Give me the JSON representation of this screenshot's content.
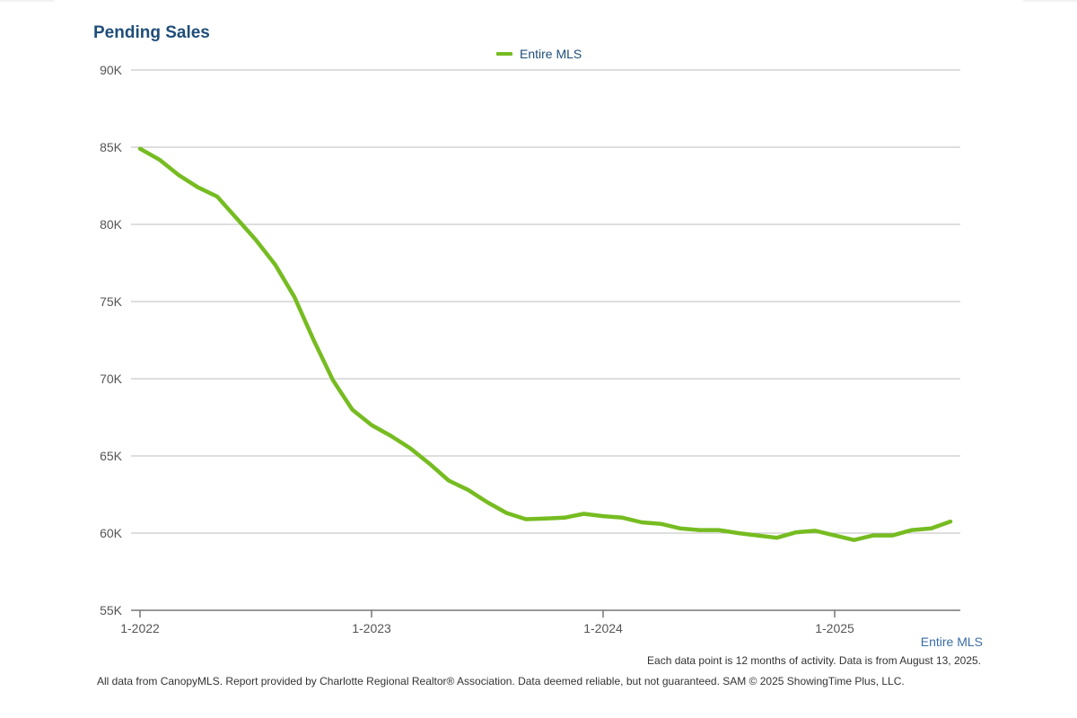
{
  "chart_data": {
    "type": "line",
    "title": "Pending Sales",
    "legend": {
      "entries": [
        "Entire MLS"
      ],
      "placement": "top-center"
    },
    "y_ticks": [
      "55K",
      "60K",
      "65K",
      "70K",
      "75K",
      "80K",
      "85K",
      "90K"
    ],
    "ylim": [
      55000,
      90000
    ],
    "x_ticks": [
      "1-2022",
      "1-2023",
      "1-2024",
      "1-2025"
    ],
    "grid": "horizontal",
    "series": [
      {
        "name": "Entire MLS",
        "color": "#76bc21",
        "x": [
          "2022-01",
          "2022-02",
          "2022-03",
          "2022-04",
          "2022-05",
          "2022-06",
          "2022-07",
          "2022-08",
          "2022-09",
          "2022-10",
          "2022-11",
          "2022-12",
          "2023-01",
          "2023-02",
          "2023-03",
          "2023-04",
          "2023-05",
          "2023-06",
          "2023-07",
          "2023-08",
          "2023-09",
          "2023-10",
          "2023-11",
          "2023-12",
          "2024-01",
          "2024-02",
          "2024-03",
          "2024-04",
          "2024-05",
          "2024-06",
          "2024-07",
          "2024-08",
          "2024-09",
          "2024-10",
          "2024-11",
          "2024-12",
          "2025-01",
          "2025-02",
          "2025-03",
          "2025-04",
          "2025-05",
          "2025-06",
          "2025-07"
        ],
        "values": [
          84900,
          84200,
          83200,
          82400,
          81800,
          80400,
          79000,
          77400,
          75300,
          72500,
          69900,
          68000,
          67000,
          66300,
          65500,
          64500,
          63400,
          62800,
          62000,
          61300,
          60900,
          60950,
          61000,
          61250,
          61100,
          61000,
          60700,
          60600,
          60300,
          60200,
          60200,
          60000,
          59850,
          59700,
          60050,
          60150,
          59850,
          59550,
          59850,
          59850,
          60200,
          60300,
          60750
        ]
      }
    ]
  },
  "filter_label": "Entire MLS",
  "note": "Each data point is 12 months of activity. Data is from August 13, 2025.",
  "footer": "All data from CanopyMLS. Report provided by Charlotte Regional Realtor® Association. Data deemed reliable, but not guaranteed. SAM © 2025 ShowingTime Plus, LLC."
}
